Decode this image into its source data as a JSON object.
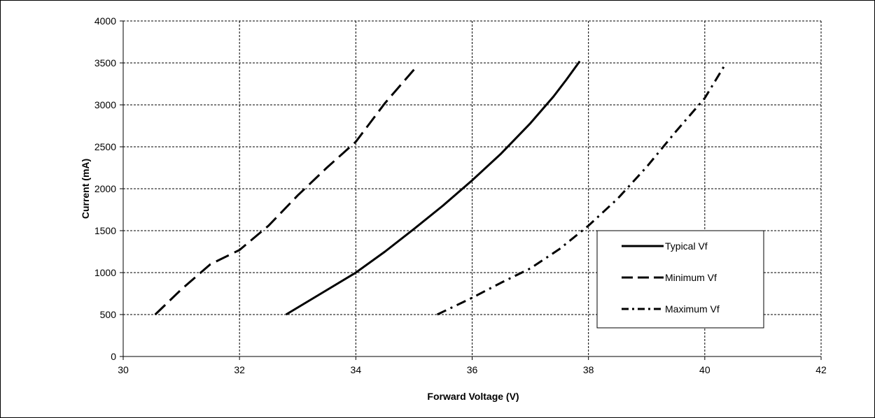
{
  "chart_data": {
    "type": "line",
    "title": "",
    "xlabel": "Forward Voltage (V)",
    "ylabel": "Current (mA)",
    "xlim": [
      30,
      42
    ],
    "ylim": [
      0,
      4000
    ],
    "x_ticks": [
      "30",
      "32",
      "34",
      "36",
      "38",
      "40",
      "42"
    ],
    "y_ticks": [
      "0",
      "500",
      "1000",
      "1500",
      "2000",
      "2500",
      "3000",
      "3500",
      "4000"
    ],
    "grid": true,
    "legend_position": "right",
    "series": [
      {
        "name": "Typical Vf",
        "style": "solid",
        "points": [
          [
            32.8,
            500
          ],
          [
            33.4,
            750
          ],
          [
            34.0,
            1000
          ],
          [
            34.5,
            1250
          ],
          [
            35.0,
            1520
          ],
          [
            35.5,
            1800
          ],
          [
            36.0,
            2100
          ],
          [
            36.5,
            2420
          ],
          [
            37.0,
            2780
          ],
          [
            37.4,
            3100
          ],
          [
            37.62,
            3300
          ],
          [
            37.85,
            3520
          ]
        ]
      },
      {
        "name": "Minimum Vf",
        "style": "dashed",
        "points": [
          [
            30.55,
            500
          ],
          [
            31.0,
            800
          ],
          [
            31.5,
            1100
          ],
          [
            32.0,
            1270
          ],
          [
            32.5,
            1560
          ],
          [
            33.0,
            1920
          ],
          [
            33.5,
            2250
          ],
          [
            34.0,
            2560
          ],
          [
            34.5,
            3020
          ],
          [
            35.0,
            3420
          ]
        ]
      },
      {
        "name": "Maximum Vf",
        "style": "dashdot",
        "points": [
          [
            35.4,
            500
          ],
          [
            36.0,
            700
          ],
          [
            36.5,
            880
          ],
          [
            37.0,
            1050
          ],
          [
            37.5,
            1280
          ],
          [
            38.0,
            1560
          ],
          [
            38.5,
            1880
          ],
          [
            39.0,
            2260
          ],
          [
            39.5,
            2680
          ],
          [
            40.0,
            3080
          ],
          [
            40.35,
            3480
          ]
        ]
      }
    ]
  }
}
